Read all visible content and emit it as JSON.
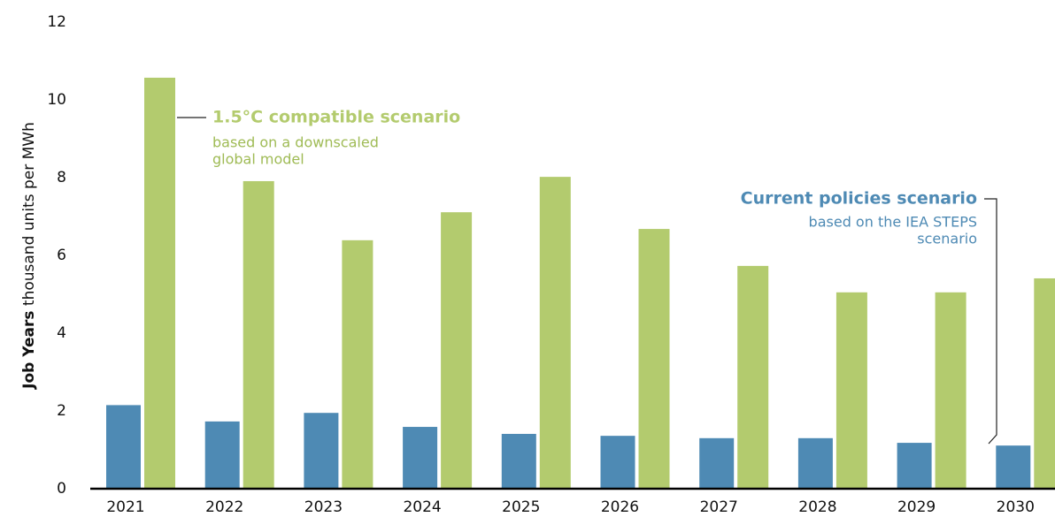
{
  "chart_data": {
    "type": "bar",
    "y_label_bold": "Job Years",
    "y_label_rest": "thousand units per MWh",
    "categories": [
      "2021",
      "2022",
      "2023",
      "2024",
      "2025",
      "2026",
      "2027",
      "2028",
      "2029",
      "2030"
    ],
    "series": [
      {
        "name": "Current policies scenario",
        "color": "#4e8ab4",
        "note": [
          "based on the IEA STEPS",
          "scenario"
        ],
        "values": [
          2.15,
          1.73,
          1.95,
          1.59,
          1.41,
          1.36,
          1.3,
          1.3,
          1.18,
          1.11
        ]
      },
      {
        "name": "1.5°C compatible scenario",
        "color": "#b3cb6e",
        "note": [
          "based on a downscaled",
          "global model"
        ],
        "values": [
          10.57,
          7.91,
          6.39,
          7.11,
          8.02,
          6.68,
          5.73,
          5.05,
          5.05,
          5.41
        ]
      }
    ],
    "ylim": [
      0,
      12
    ],
    "yticks": [
      0,
      2,
      4,
      6,
      8,
      10,
      12
    ],
    "grid": false
  }
}
